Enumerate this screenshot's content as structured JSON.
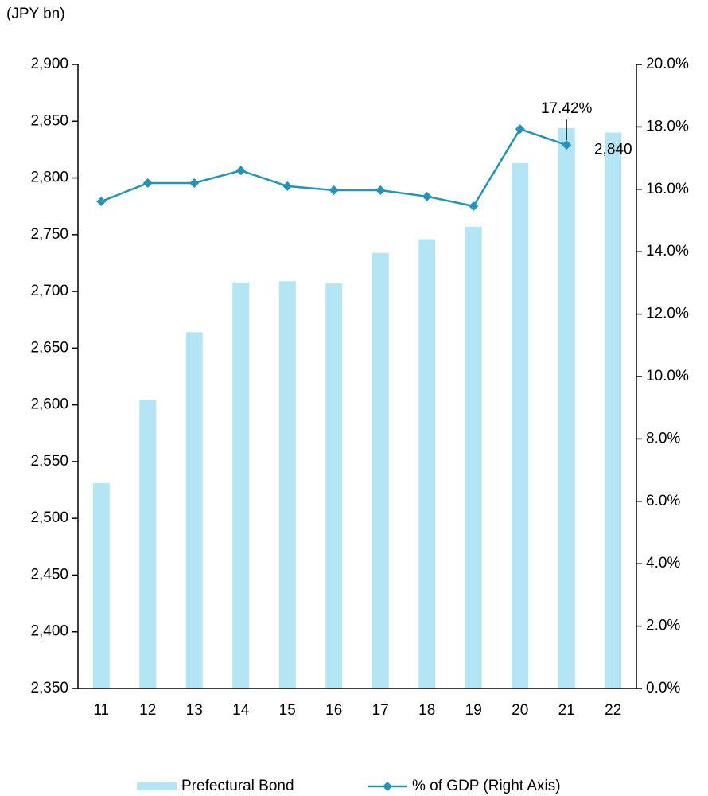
{
  "chart_data": {
    "type": "bar_line",
    "y_label": "(JPY bn)",
    "categories": [
      "11",
      "12",
      "13",
      "14",
      "15",
      "16",
      "17",
      "18",
      "19",
      "20",
      "21",
      "22"
    ],
    "series": [
      {
        "name": "Prefectural Bond",
        "type": "bar",
        "color": "#b3e5f5",
        "values": [
          2531,
          2604,
          2664,
          2708,
          2709,
          2707,
          2734,
          2746,
          2757,
          2813,
          2844,
          2840
        ],
        "value_labels": [
          null,
          null,
          null,
          null,
          null,
          null,
          null,
          null,
          null,
          null,
          null,
          "2,840"
        ]
      },
      {
        "name": "% of GDP (Right Axis)",
        "type": "line",
        "axis": "y2",
        "color": "#2394b6",
        "values": [
          15.61,
          16.2,
          16.2,
          16.6,
          16.1,
          15.97,
          15.97,
          15.77,
          15.46,
          17.93,
          17.42,
          null
        ],
        "value_labels": [
          null,
          null,
          null,
          null,
          null,
          null,
          null,
          null,
          null,
          null,
          "17.42%",
          null
        ]
      }
    ],
    "ylim": [
      2350,
      2900
    ],
    "yticks": [
      {
        "value": 2350,
        "label": "2,350"
      },
      {
        "value": 2400,
        "label": "2,400"
      },
      {
        "value": 2450,
        "label": "2,450"
      },
      {
        "value": 2500,
        "label": "2,500"
      },
      {
        "value": 2550,
        "label": "2,550"
      },
      {
        "value": 2600,
        "label": "2,600"
      },
      {
        "value": 2650,
        "label": "2,650"
      },
      {
        "value": 2700,
        "label": "2,700"
      },
      {
        "value": 2750,
        "label": "2,750"
      },
      {
        "value": 2800,
        "label": "2,800"
      },
      {
        "value": 2850,
        "label": "2,850"
      },
      {
        "value": 2900,
        "label": "2,900"
      }
    ],
    "y2lim": [
      0,
      20
    ],
    "y2ticks": [
      {
        "value": 0,
        "label": "0.0%"
      },
      {
        "value": 2,
        "label": "2.0%"
      },
      {
        "value": 4,
        "label": "4.0%"
      },
      {
        "value": 6,
        "label": "6.0%"
      },
      {
        "value": 8,
        "label": "8.0%"
      },
      {
        "value": 10,
        "label": "10.0%"
      },
      {
        "value": 12,
        "label": "12.0%"
      },
      {
        "value": 14,
        "label": "14.0%"
      },
      {
        "value": 16,
        "label": "16.0%"
      },
      {
        "value": 18,
        "label": "18.0%"
      },
      {
        "value": 20,
        "label": "20.0%"
      }
    ],
    "grid": false,
    "legend": "bottom"
  }
}
